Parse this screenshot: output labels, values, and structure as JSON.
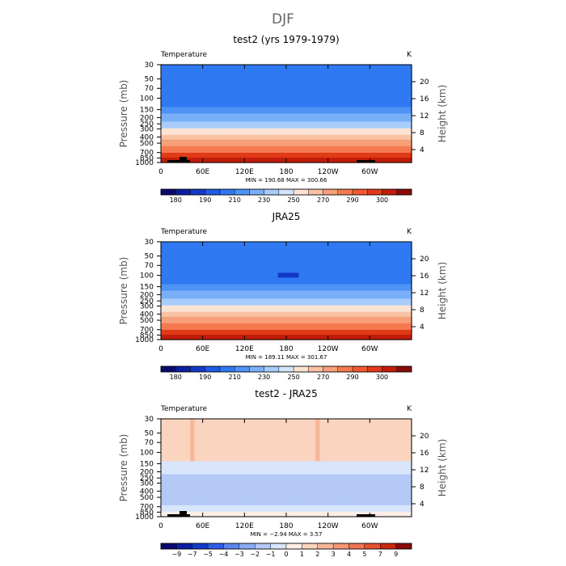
{
  "figure_title": "DJF",
  "colors": {
    "abs_levels": [
      "#0a0a6e",
      "#0b1fa0",
      "#1439c8",
      "#1f5be3",
      "#2f79f2",
      "#4f93f5",
      "#7ab0f8",
      "#a8cdfa",
      "#d4e5fb",
      "#fbe3d4",
      "#f9c2a4",
      "#f7a07a",
      "#f57a50",
      "#ef5a30",
      "#e03a18",
      "#c21c0a",
      "#8a0a0a"
    ],
    "diff_levels": [
      "#0a0a6e",
      "#0b1fa0",
      "#1439c8",
      "#2f5ee6",
      "#5c85f0",
      "#8aaaf3",
      "#b4c9f6",
      "#d8e5fb",
      "#fdeee6",
      "#fad4bf",
      "#f8b698",
      "#f69774",
      "#f07552",
      "#e3512f",
      "#c82a10",
      "#8a0a0a"
    ]
  },
  "panels": [
    {
      "title": "test2 (yrs 1979-1979)",
      "left_label": "Temperature",
      "right_label": "K",
      "xlabels": [
        "0",
        "60E",
        "120E",
        "180",
        "120W",
        "60W"
      ],
      "ylabel": "Pressure (mb)",
      "y2label": "Height (km)",
      "pressure_ticks": [
        "30",
        "50",
        "70",
        "100",
        "150",
        "200",
        "250",
        "300",
        "400",
        "500",
        "700",
        "850",
        "1000"
      ],
      "height_ticks": [
        "20",
        "16",
        "12",
        "8",
        "4"
      ],
      "stats": "MIN = 190.68   MAX = 300.66",
      "colorbar_labels": [
        "180",
        "190",
        "210",
        "230",
        "250",
        "270",
        "290",
        "300"
      ]
    },
    {
      "title": "JRA25",
      "left_label": "Temperature",
      "right_label": "K",
      "xlabels": [
        "0",
        "60E",
        "120E",
        "180",
        "120W",
        "60W"
      ],
      "ylabel": "Pressure (mb)",
      "y2label": "Height (km)",
      "pressure_ticks": [
        "30",
        "50",
        "70",
        "100",
        "150",
        "200",
        "250",
        "300",
        "400",
        "500",
        "700",
        "850",
        "1000"
      ],
      "height_ticks": [
        "20",
        "16",
        "12",
        "8",
        "4"
      ],
      "stats": "MIN = 189.11   MAX = 301.67",
      "colorbar_labels": [
        "180",
        "190",
        "210",
        "230",
        "250",
        "270",
        "290",
        "300"
      ]
    },
    {
      "title": "test2 - JRA25",
      "left_label": "Temperature",
      "right_label": "K",
      "xlabels": [
        "0",
        "60E",
        "120E",
        "180",
        "120W",
        "60W"
      ],
      "ylabel": "Pressure (mb)",
      "y2label": "Height (km)",
      "pressure_ticks": [
        "30",
        "50",
        "70",
        "100",
        "150",
        "200",
        "250",
        "300",
        "400",
        "500",
        "700",
        "850",
        "1000"
      ],
      "height_ticks": [
        "20",
        "16",
        "12",
        "8",
        "4"
      ],
      "stats": "MIN =  −2.94   MAX =    3.57",
      "colorbar_labels": [
        "−9",
        "−7",
        "−5",
        "−4",
        "−3",
        "−2",
        "−1",
        "0",
        "1",
        "2",
        "3",
        "4",
        "5",
        "7",
        "9"
      ]
    }
  ],
  "chart_data": [
    {
      "type": "heatmap",
      "title": "test2 (yrs 1979-1979)",
      "xlabel": "",
      "ylabel": "Pressure (mb)",
      "y2label": "Height (km)",
      "x_ticks": [
        "0",
        "60E",
        "120E",
        "180",
        "120W",
        "60W"
      ],
      "y_ticks": [
        30,
        50,
        70,
        100,
        150,
        200,
        250,
        300,
        400,
        500,
        700,
        850,
        1000
      ],
      "y_scale": "log",
      "ylim": [
        1000,
        30
      ],
      "min": 190.68,
      "max": 300.66,
      "units": "K",
      "contour_levels": [
        180,
        190,
        200,
        210,
        220,
        230,
        240,
        250,
        260,
        270,
        280,
        290,
        300
      ]
    },
    {
      "type": "heatmap",
      "title": "JRA25",
      "xlabel": "",
      "ylabel": "Pressure (mb)",
      "y2label": "Height (km)",
      "x_ticks": [
        "0",
        "60E",
        "120E",
        "180",
        "120W",
        "60W"
      ],
      "y_ticks": [
        30,
        50,
        70,
        100,
        150,
        200,
        250,
        300,
        400,
        500,
        700,
        850,
        1000
      ],
      "y_scale": "log",
      "ylim": [
        1000,
        30
      ],
      "min": 189.11,
      "max": 301.67,
      "units": "K",
      "contour_levels": [
        180,
        190,
        200,
        210,
        220,
        230,
        240,
        250,
        260,
        270,
        280,
        290,
        300
      ]
    },
    {
      "type": "heatmap",
      "title": "test2 - JRA25",
      "xlabel": "",
      "ylabel": "Pressure (mb)",
      "y2label": "Height (km)",
      "x_ticks": [
        "0",
        "60E",
        "120E",
        "180",
        "120W",
        "60W"
      ],
      "y_ticks": [
        30,
        50,
        70,
        100,
        150,
        200,
        250,
        300,
        400,
        500,
        700,
        850,
        1000
      ],
      "y_scale": "log",
      "ylim": [
        1000,
        30
      ],
      "min": -2.94,
      "max": 3.57,
      "units": "K",
      "contour_levels": [
        -9,
        -7,
        -5,
        -4,
        -3,
        -2,
        -1,
        0,
        1,
        2,
        3,
        4,
        5,
        7,
        9
      ]
    }
  ]
}
